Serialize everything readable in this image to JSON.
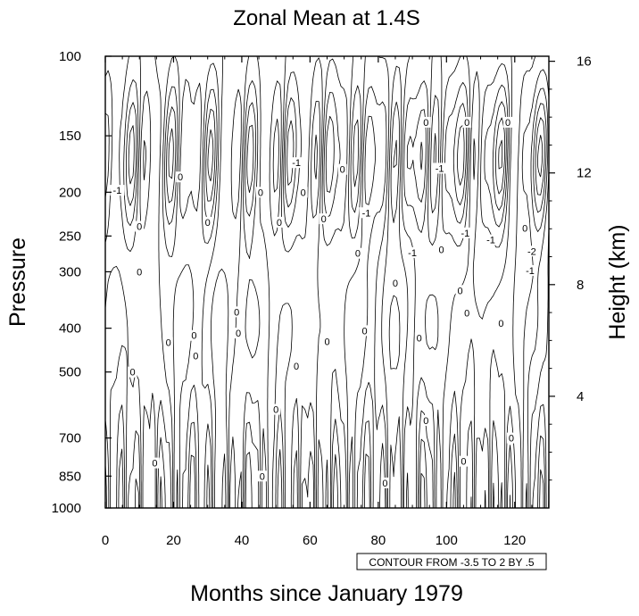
{
  "chart_data": {
    "type": "contour",
    "title": "Zonal Mean at 1.4S",
    "xlabel": "Months since January 1979",
    "ylabel": "Pressure",
    "y2label": "Height (km)",
    "x_range": [
      0,
      130
    ],
    "y_range": [
      1000,
      100
    ],
    "y_scale": "log",
    "x_ticks": [
      0,
      20,
      40,
      60,
      80,
      100,
      120
    ],
    "x_tick_labels": [
      "0",
      "20",
      "40",
      "60",
      "80",
      "100",
      "120"
    ],
    "y_ticks": [
      100,
      150,
      200,
      250,
      300,
      400,
      500,
      700,
      850,
      1000
    ],
    "y_tick_labels": [
      "100",
      "150",
      "200",
      "250",
      "300",
      "400",
      "500",
      "700",
      "850",
      "1000"
    ],
    "y2_ticks": [
      4,
      8,
      12,
      16
    ],
    "y2_tick_labels": [
      "4",
      "8",
      "12",
      "16"
    ],
    "contour_levels": {
      "min": -3.5,
      "max": 2,
      "step": 0.5
    },
    "info_label": "CONTOUR FROM -3.5 TO 2 BY .5",
    "line_color": "#000000",
    "contour_labels": [
      {
        "text": "-1",
        "x": 3.5,
        "p": 198
      },
      {
        "text": "0",
        "x": 10,
        "p": 238
      },
      {
        "text": "0",
        "x": 10,
        "p": 300
      },
      {
        "text": "0",
        "x": 22,
        "p": 185
      },
      {
        "text": "0",
        "x": 30,
        "p": 233
      },
      {
        "text": "0",
        "x": 45.5,
        "p": 200
      },
      {
        "text": "0",
        "x": 51,
        "p": 233
      },
      {
        "text": "0",
        "x": 58,
        "p": 200
      },
      {
        "text": "-1",
        "x": 56,
        "p": 172
      },
      {
        "text": "0",
        "x": 64,
        "p": 229
      },
      {
        "text": "0",
        "x": 69.5,
        "p": 178
      },
      {
        "text": "-1",
        "x": 76.5,
        "p": 222
      },
      {
        "text": "0",
        "x": 74,
        "p": 273
      },
      {
        "text": "-1",
        "x": 90,
        "p": 272
      },
      {
        "text": "0",
        "x": 94,
        "p": 140
      },
      {
        "text": "-1",
        "x": 98,
        "p": 177
      },
      {
        "text": "0",
        "x": 98.5,
        "p": 268
      },
      {
        "text": "0",
        "x": 106,
        "p": 140
      },
      {
        "text": "-1",
        "x": 105.5,
        "p": 246
      },
      {
        "text": "-1",
        "x": 113,
        "p": 255
      },
      {
        "text": "0",
        "x": 118,
        "p": 140
      },
      {
        "text": "0",
        "x": 123,
        "p": 240
      },
      {
        "text": "-2",
        "x": 125,
        "p": 270
      },
      {
        "text": "-1",
        "x": 124.5,
        "p": 298
      },
      {
        "text": "0",
        "x": 85,
        "p": 318
      },
      {
        "text": "0",
        "x": 104,
        "p": 330
      },
      {
        "text": "0",
        "x": 106,
        "p": 370
      },
      {
        "text": "0",
        "x": 116,
        "p": 390
      },
      {
        "text": "0",
        "x": 38.5,
        "p": 368
      },
      {
        "text": "0",
        "x": 39,
        "p": 410
      },
      {
        "text": "0",
        "x": 26,
        "p": 415
      },
      {
        "text": "0",
        "x": 18.5,
        "p": 430
      },
      {
        "text": "0",
        "x": 26.5,
        "p": 460
      },
      {
        "text": "0",
        "x": 65,
        "p": 428
      },
      {
        "text": "0",
        "x": 76,
        "p": 405
      },
      {
        "text": "0",
        "x": 92,
        "p": 420
      },
      {
        "text": "0",
        "x": 56,
        "p": 485
      },
      {
        "text": "0",
        "x": 8,
        "p": 500
      },
      {
        "text": "0",
        "x": 50,
        "p": 605
      },
      {
        "text": "0",
        "x": 94,
        "p": 640
      },
      {
        "text": "0",
        "x": 119,
        "p": 700
      },
      {
        "text": "0",
        "x": 14.5,
        "p": 795
      },
      {
        "text": "0",
        "x": 105,
        "p": 788
      },
      {
        "text": "0",
        "x": 46,
        "p": 850
      },
      {
        "text": "0",
        "x": 82,
        "p": 880
      }
    ]
  }
}
